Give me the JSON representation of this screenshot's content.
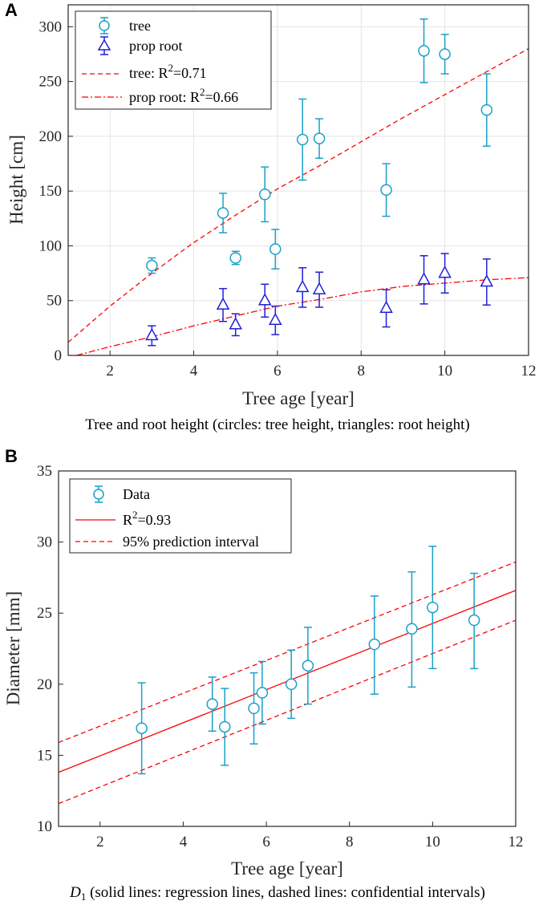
{
  "colors": {
    "tree": "#1aa0c8",
    "root": "#2020d8",
    "fit": "#ff0000",
    "axis": "#262626",
    "grid": "#e4e4e4"
  },
  "chart_data": [
    {
      "panel": "A",
      "type": "scatter",
      "xlabel": "Tree age [year]",
      "ylabel": "Height [cm]",
      "xlim": [
        1,
        12
      ],
      "ylim": [
        0,
        320
      ],
      "xticks": [
        2,
        4,
        6,
        8,
        10,
        12
      ],
      "yticks": [
        0,
        50,
        100,
        150,
        200,
        250,
        300
      ],
      "grid": true,
      "caption": "Tree and root height (circles: tree height, triangles: root height)",
      "legend": [
        {
          "label": "tree",
          "style": "errorbar-circle"
        },
        {
          "label": "prop root",
          "style": "errorbar-triangle"
        },
        {
          "label": "tree: R",
          "sup": "2",
          "suffix": "=0.71",
          "style": "dashed"
        },
        {
          "label": "prop root: R",
          "sup": "2",
          "suffix": "=0.66",
          "style": "dashdot"
        }
      ],
      "series": [
        {
          "name": "tree",
          "marker": "circle",
          "x": [
            3,
            4.7,
            5,
            5.7,
            5.95,
            6.6,
            7,
            8.6,
            9.5,
            10,
            11
          ],
          "y": [
            82,
            130,
            89,
            147,
            97,
            197,
            198,
            151,
            278,
            275,
            224
          ],
          "err": [
            7,
            18,
            6,
            25,
            18,
            37,
            18,
            24,
            29,
            18,
            33
          ]
        },
        {
          "name": "prop root",
          "marker": "triangle",
          "x": [
            3,
            4.7,
            5,
            5.7,
            5.95,
            6.6,
            7,
            8.6,
            9.5,
            10,
            11
          ],
          "y": [
            18,
            46,
            28,
            50,
            32,
            62,
            60,
            43,
            69,
            75,
            67
          ],
          "err": [
            9,
            15,
            10,
            15,
            13,
            18,
            16,
            17,
            22,
            18,
            21
          ]
        },
        {
          "name": "tree: R2=0.71",
          "kind": "fit-dashed",
          "x": [
            1,
            2,
            3,
            4,
            5,
            6,
            7,
            8,
            9,
            10,
            11,
            12
          ],
          "y": [
            12,
            45,
            75,
            103,
            128,
            152,
            173,
            195,
            217,
            238,
            259,
            280
          ]
        },
        {
          "name": "prop root: R2=0.66",
          "kind": "fit-dashdot",
          "x": [
            1.2,
            2,
            3,
            4,
            5,
            6,
            7,
            8,
            9,
            10,
            11,
            12
          ],
          "y": [
            0,
            8,
            17,
            27,
            36,
            45,
            51,
            58,
            63,
            66,
            69,
            71
          ]
        }
      ]
    },
    {
      "panel": "B",
      "type": "scatter",
      "xlabel": "Tree age [year]",
      "ylabel": "Diameter [mm]",
      "xlim": [
        1,
        12
      ],
      "ylim": [
        10,
        35
      ],
      "xticks": [
        2,
        4,
        6,
        8,
        10,
        12
      ],
      "yticks": [
        10,
        15,
        20,
        25,
        30,
        35
      ],
      "grid": false,
      "caption_italic": "D",
      "caption_sub": "1",
      "caption_rest": " (solid lines: regression lines, dashed lines: confidential intervals)",
      "legend": [
        {
          "label": "Data",
          "style": "errorbar-circle"
        },
        {
          "label": "R",
          "sup": "2",
          "suffix": "=0.93",
          "style": "solid"
        },
        {
          "label": "95% prediction interval",
          "style": "dashed"
        }
      ],
      "series": [
        {
          "name": "Data",
          "marker": "circle",
          "x": [
            3,
            4.7,
            5,
            5.7,
            5.9,
            6.6,
            7,
            8.6,
            9.5,
            10,
            11
          ],
          "y": [
            16.9,
            18.6,
            17.0,
            18.3,
            19.4,
            20.0,
            21.3,
            22.8,
            23.9,
            25.4,
            24.5
          ],
          "lo": [
            13.7,
            16.7,
            14.3,
            15.8,
            17.2,
            17.6,
            18.6,
            19.3,
            19.8,
            21.1,
            21.1
          ],
          "hi": [
            20.1,
            20.5,
            19.7,
            20.8,
            21.6,
            22.4,
            24.0,
            26.2,
            27.9,
            29.7,
            27.8
          ]
        },
        {
          "name": "R2=0.93",
          "kind": "fit-solid",
          "x": [
            1,
            12
          ],
          "y": [
            13.8,
            26.6
          ]
        },
        {
          "name": "95% upper",
          "kind": "fit-dashed",
          "x": [
            1,
            12
          ],
          "y": [
            15.9,
            28.6
          ]
        },
        {
          "name": "95% lower",
          "kind": "fit-dashed",
          "x": [
            1,
            12
          ],
          "y": [
            11.6,
            24.5
          ]
        }
      ]
    }
  ]
}
